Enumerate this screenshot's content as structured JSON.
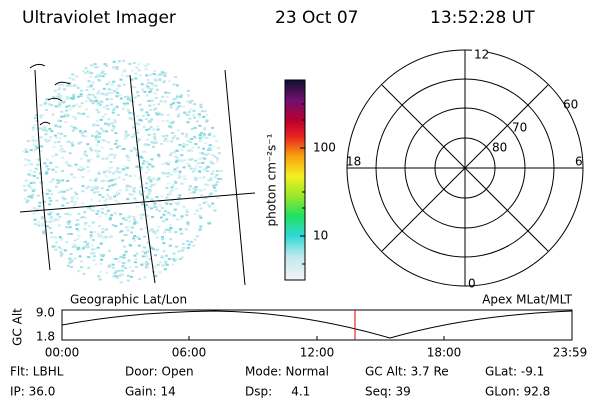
{
  "header": {
    "title": "Ultraviolet Imager",
    "date": "23 Oct 07",
    "time": "13:52:28 UT"
  },
  "colorbar": {
    "label": "photon cm⁻²s⁻¹",
    "ticks": [
      "100",
      "10"
    ]
  },
  "polar": {
    "mlt_labels": [
      "12",
      "6",
      "0",
      "18"
    ],
    "lat_labels": [
      "60",
      "70",
      "80"
    ]
  },
  "timeline": {
    "left_label": "Geographic Lat/Lon",
    "right_label": "Apex MLat/MLT",
    "axis_label": "GC Alt",
    "y_labels": [
      "9.0",
      "1.8"
    ],
    "x_labels": [
      "00:00",
      "06:00",
      "12:00",
      "18:00",
      "23:59"
    ]
  },
  "status": {
    "rows": [
      [
        "Flt: LBHL",
        "Door: Open",
        "Mode: Normal",
        "GC Alt: 3.7 Re",
        "GLat: -9.1"
      ],
      [
        "IP: 36.0",
        "Gain: 14",
        "Dsp:     4.1",
        "Seq: 39",
        "GLon: 92.8"
      ]
    ]
  }
}
